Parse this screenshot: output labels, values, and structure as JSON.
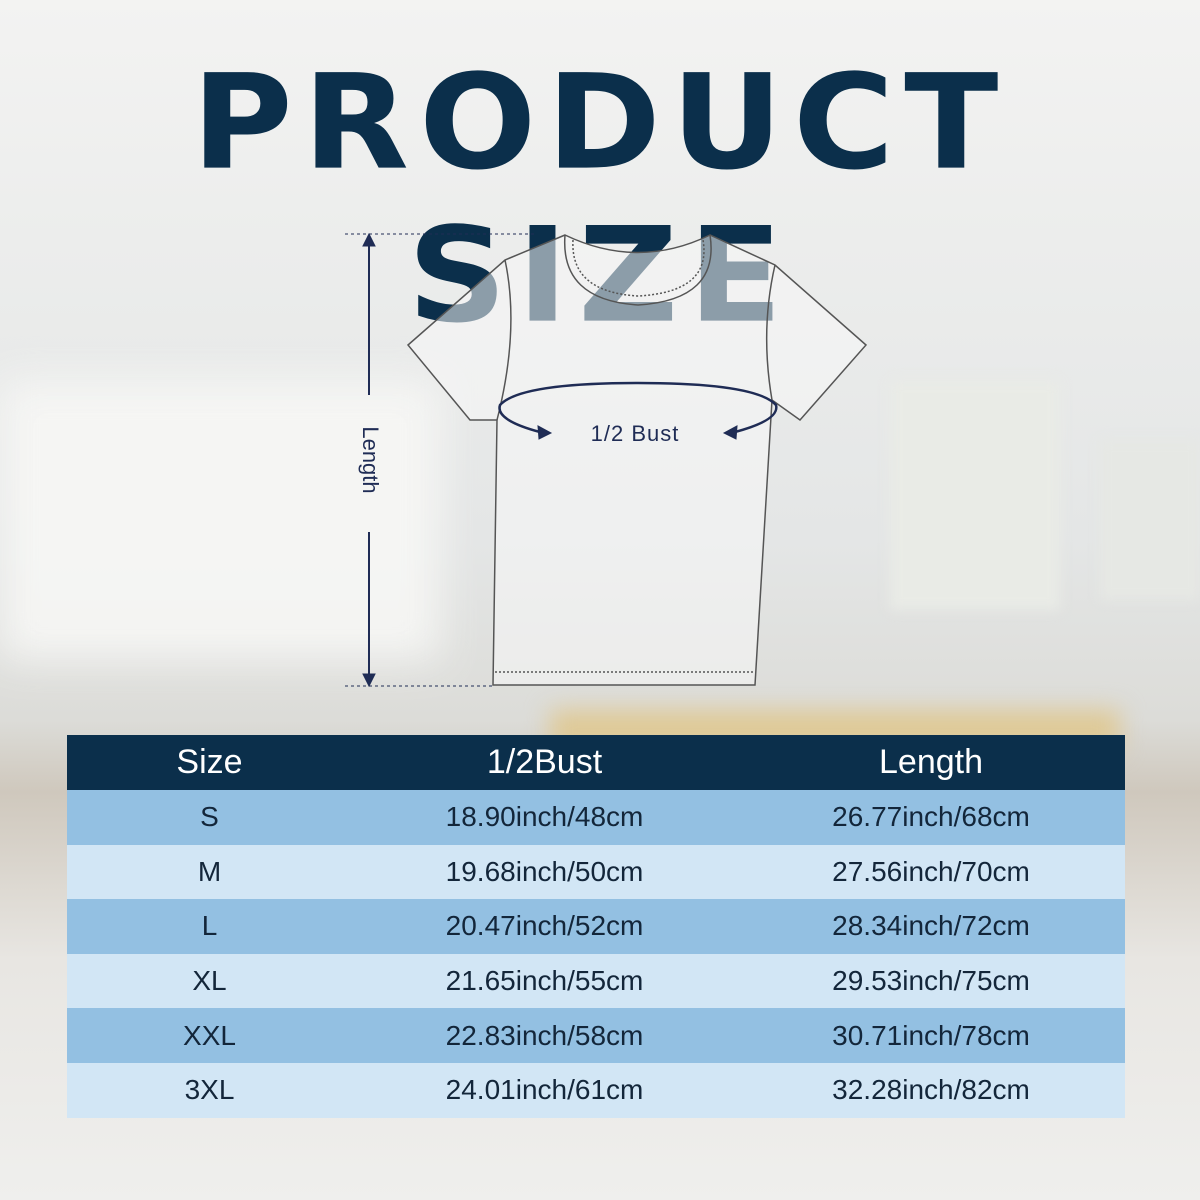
{
  "title": "PRODUCT SIZE",
  "diagram": {
    "length_label": "Length",
    "bust_label": "1/2 Bust"
  },
  "colors": {
    "header": "#0b2f4b",
    "row_dark": "#93c0e2",
    "row_light": "#d2e6f5",
    "measure_line": "#1f2c55"
  },
  "table": {
    "headers": [
      "Size",
      "1/2Bust",
      "Length"
    ],
    "rows": [
      [
        "S",
        "18.90inch/48cm",
        "26.77inch/68cm"
      ],
      [
        "M",
        "19.68inch/50cm",
        "27.56inch/70cm"
      ],
      [
        "L",
        "20.47inch/52cm",
        "28.34inch/72cm"
      ],
      [
        "XL",
        "21.65inch/55cm",
        "29.53inch/75cm"
      ],
      [
        "XXL",
        "22.83inch/58cm",
        "30.71inch/78cm"
      ],
      [
        "3XL",
        "24.01inch/61cm",
        "32.28inch/82cm"
      ]
    ]
  }
}
